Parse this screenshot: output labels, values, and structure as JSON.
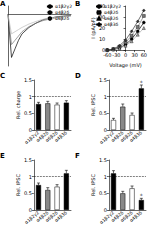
{
  "chart_data": [
    {
      "type": "line",
      "title": "A",
      "tick_labels": false,
      "grid": false,
      "legend": "upper right",
      "x": [
        0,
        1,
        2,
        3,
        4,
        6,
        8,
        10,
        14,
        18
      ],
      "xlim": [
        0,
        18
      ],
      "ylim": [
        -1.2,
        0.2
      ],
      "series": [
        {
          "name": "α1β2γ2",
          "color": "#000000",
          "values": [
            0,
            -1.0,
            -0.8,
            -0.6,
            -0.45,
            -0.3,
            -0.2,
            -0.12,
            -0.05,
            -0.02
          ]
        },
        {
          "name": "α4β2δ",
          "color": "#777777",
          "values": [
            0,
            -0.7,
            -0.6,
            -0.5,
            -0.4,
            -0.28,
            -0.2,
            -0.14,
            -0.07,
            -0.03
          ]
        },
        {
          "name": "α6β2δ",
          "color": "#bbbbbb",
          "values": [
            0,
            -0.45,
            -0.4,
            -0.35,
            -0.3,
            -0.22,
            -0.16,
            -0.11,
            -0.06,
            -0.03
          ]
        }
      ]
    },
    {
      "type": "line",
      "title": "B",
      "x_label": "Voltage (mV)",
      "y_label": "I (pA/pF)",
      "grid": false,
      "legend": "upper left",
      "x": [
        -60,
        -40,
        -20,
        0,
        20,
        40,
        60
      ],
      "xlim": [
        -60,
        60
      ],
      "xticks": [
        -60,
        -30,
        0,
        30,
        60
      ],
      "ylim": [
        0,
        40
      ],
      "yticks": [
        0,
        10,
        20,
        30,
        40
      ],
      "series": [
        {
          "name": "α1β2γ2",
          "color": "#000000",
          "marker": "circle",
          "values": [
            0,
            0.5,
            2,
            5,
            10,
            17,
            25
          ]
        },
        {
          "name": "α4β2δ",
          "color": "#777777",
          "marker": "square",
          "values": [
            0,
            1,
            3,
            7,
            13,
            21,
            31
          ]
        },
        {
          "name": "α6β2δ",
          "color": "#aaaaaa",
          "marker": "triangle",
          "values": [
            0,
            0.5,
            1.5,
            4,
            8,
            14,
            20
          ]
        },
        {
          "name": "α4β3δ",
          "color": "#333333",
          "marker": "diamond",
          "values": [
            0,
            1,
            4,
            9,
            17,
            26,
            36
          ]
        }
      ]
    },
    {
      "type": "bar",
      "title": "C",
      "y_label": "Rel. charge",
      "grid": false,
      "categories": [
        "α1β2γ2",
        "α4β2δ",
        "α6β2δ",
        "α4β3δ"
      ],
      "values": [
        0.78,
        0.8,
        0.76,
        0.82
      ],
      "errors": [
        0.05,
        0.06,
        0.05,
        0.06
      ],
      "colors": [
        "#000000",
        "#888888",
        "#ffffff",
        "#000000"
      ],
      "reference": 1,
      "ylim": [
        0,
        1.5
      ],
      "yticks": [
        0,
        0.5,
        1,
        1.5
      ]
    },
    {
      "type": "bar",
      "title": "D",
      "y_label": "Rel. IPSC",
      "grid": false,
      "categories": [
        "α1β2γ2",
        "α4β2δ",
        "α6β2δ",
        "α4β3δ"
      ],
      "values": [
        0.3,
        0.7,
        0.45,
        1.25
      ],
      "errors": [
        0.05,
        0.08,
        0.06,
        0.1
      ],
      "colors": [
        "#ffffff",
        "#888888",
        "#ffffff",
        "#000000"
      ],
      "significance": [
        null,
        null,
        null,
        "*"
      ],
      "reference": 1,
      "ylim": [
        0,
        1.5
      ],
      "yticks": [
        0,
        0.5,
        1,
        1.5
      ]
    },
    {
      "type": "bar",
      "title": "E",
      "y_label": "Rel. IPSC",
      "grid": false,
      "categories": [
        "α1β2γ2",
        "α4β2δ",
        "α6β2δ",
        "α4β3δ"
      ],
      "values": [
        0.75,
        0.6,
        0.7,
        1.1
      ],
      "errors": [
        0.06,
        0.07,
        0.06,
        0.09
      ],
      "colors": [
        "#000000",
        "#888888",
        "#ffffff",
        "#000000"
      ],
      "reference": 1,
      "ylim": [
        0,
        1.5
      ],
      "yticks": [
        0,
        0.5,
        1,
        1.5
      ]
    },
    {
      "type": "bar",
      "title": "F",
      "y_label": "Rel. IPSC",
      "grid": false,
      "categories": [
        "α1β2γ2",
        "α4β2δ",
        "α6β2δ",
        "α4β3δ"
      ],
      "values": [
        1.1,
        0.5,
        0.65,
        0.3
      ],
      "errors": [
        0.08,
        0.06,
        0.07,
        0.05
      ],
      "colors": [
        "#000000",
        "#888888",
        "#ffffff",
        "#000000"
      ],
      "significance": [
        null,
        null,
        null,
        "*"
      ],
      "reference": 1,
      "ylim": [
        0,
        1.5
      ],
      "yticks": [
        0,
        0.5,
        1,
        1.5
      ]
    }
  ]
}
